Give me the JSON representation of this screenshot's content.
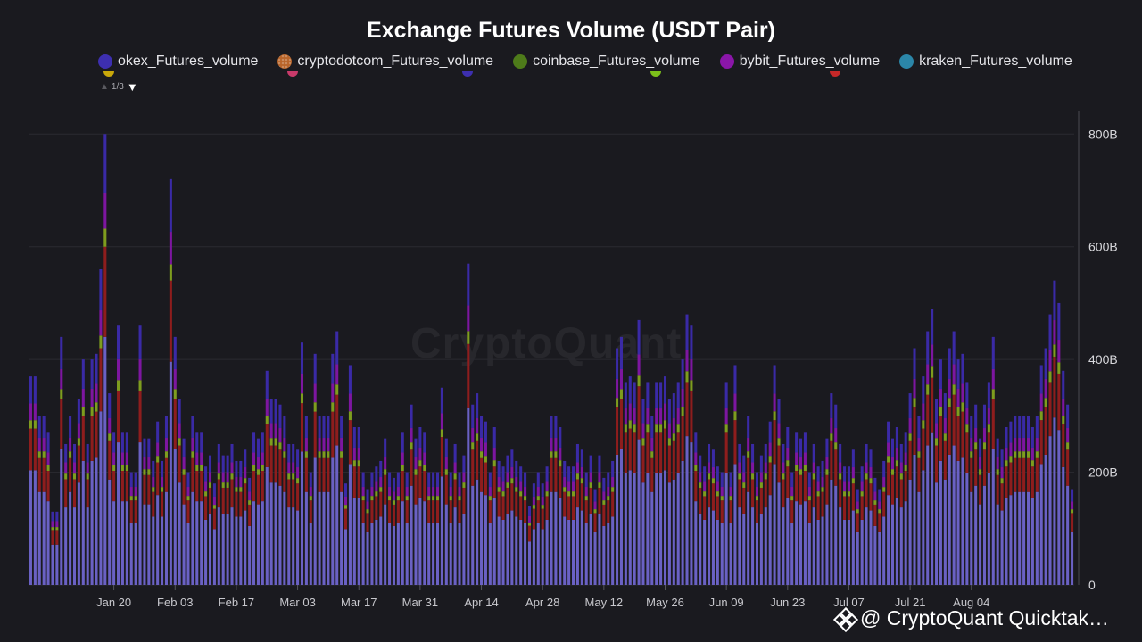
{
  "chart_data": {
    "type": "bar",
    "stacked": true,
    "title": "Exchange Futures Volume (USDT Pair)",
    "legend_position": "top",
    "legend_page": "1/3",
    "watermark": "CryptoQuant",
    "y_axis_position": "right",
    "ylim": [
      0,
      840
    ],
    "y_unit": "B",
    "y_ticks": [
      {
        "value": 0,
        "label": "0"
      },
      {
        "value": 200,
        "label": "200B"
      },
      {
        "value": 400,
        "label": "400B"
      },
      {
        "value": 600,
        "label": "600B"
      },
      {
        "value": 800,
        "label": "800B"
      }
    ],
    "x_ticks": [
      {
        "index": 19,
        "label": "Jan 20"
      },
      {
        "index": 33,
        "label": "Feb 03"
      },
      {
        "index": 47,
        "label": "Feb 17"
      },
      {
        "index": 61,
        "label": "Mar 03"
      },
      {
        "index": 75,
        "label": "Mar 17"
      },
      {
        "index": 89,
        "label": "Mar 31"
      },
      {
        "index": 103,
        "label": "Apr 14"
      },
      {
        "index": 117,
        "label": "Apr 28"
      },
      {
        "index": 131,
        "label": "May 12"
      },
      {
        "index": 145,
        "label": "May 26"
      },
      {
        "index": 159,
        "label": "Jun 09"
      },
      {
        "index": 173,
        "label": "Jun 23"
      },
      {
        "index": 187,
        "label": "Jul 07"
      },
      {
        "index": 201,
        "label": "Jul 21"
      },
      {
        "index": 215,
        "label": "Aug 04"
      }
    ],
    "legend_visible": [
      {
        "name": "okex_Futures_volume",
        "color": "#3d2fb0"
      },
      {
        "name": "cryptodotcom_Futures_volume",
        "color": "#b8652a",
        "pattern": true
      },
      {
        "name": "coinbase_Futures_volume",
        "color": "#4e7b1a"
      },
      {
        "name": "bybit_Futures_volume",
        "color": "#8a16a8"
      },
      {
        "name": "kraken_Futures_volume",
        "color": "#2b86a8"
      }
    ],
    "legend_peek_colors": [
      "#c9a80a",
      "#c93a6a",
      "#3d2fb0",
      "#7cbf1a",
      "#c62828"
    ],
    "series_stack_order": [
      {
        "name": "base",
        "color": "#6a61c4"
      },
      {
        "name": "mid",
        "color": "#8e1d1d"
      },
      {
        "name": "green",
        "color": "#7e9d1e"
      },
      {
        "name": "purple",
        "color": "#7d16a0"
      },
      {
        "name": "top",
        "color": "#3a2aa6"
      }
    ],
    "totals": [
      370,
      370,
      300,
      300,
      270,
      130,
      130,
      440,
      250,
      300,
      250,
      330,
      400,
      250,
      400,
      410,
      560,
      800,
      340,
      270,
      460,
      270,
      270,
      200,
      200,
      460,
      260,
      260,
      220,
      290,
      220,
      300,
      720,
      440,
      330,
      260,
      200,
      300,
      270,
      270,
      210,
      230,
      180,
      250,
      230,
      230,
      250,
      220,
      220,
      240,
      190,
      270,
      260,
      270,
      380,
      330,
      330,
      320,
      300,
      250,
      250,
      240,
      430,
      300,
      200,
      410,
      300,
      300,
      300,
      410,
      450,
      300,
      180,
      390,
      280,
      280,
      200,
      170,
      200,
      210,
      220,
      260,
      200,
      190,
      200,
      270,
      200,
      320,
      260,
      280,
      270,
      200,
      200,
      200,
      350,
      260,
      200,
      250,
      200,
      230,
      570,
      320,
      340,
      300,
      290,
      200,
      280,
      220,
      210,
      230,
      240,
      220,
      210,
      200,
      140,
      180,
      200,
      180,
      210,
      300,
      300,
      280,
      220,
      210,
      210,
      250,
      240,
      200,
      230,
      170,
      230,
      190,
      200,
      220,
      420,
      440,
      360,
      370,
      360,
      470,
      330,
      360,
      300,
      360,
      360,
      370,
      330,
      340,
      360,
      400,
      480,
      460,
      270,
      230,
      210,
      250,
      240,
      210,
      200,
      360,
      200,
      390,
      250,
      230,
      300,
      250,
      200,
      230,
      250,
      290,
      390,
      330,
      250,
      280,
      200,
      270,
      260,
      270,
      200,
      250,
      210,
      220,
      260,
      340,
      320,
      250,
      210,
      210,
      240,
      170,
      210,
      250,
      240,
      190,
      170,
      220,
      290,
      260,
      280,
      250,
      270,
      340,
      420,
      300,
      370,
      450,
      490,
      330,
      400,
      340,
      420,
      450,
      400,
      410,
      360,
      300,
      320,
      260,
      320,
      360,
      440,
      260,
      240,
      280,
      290,
      300,
      300,
      300,
      300,
      280,
      300,
      390,
      420,
      480,
      540,
      500,
      380,
      320,
      170
    ]
  }
}
